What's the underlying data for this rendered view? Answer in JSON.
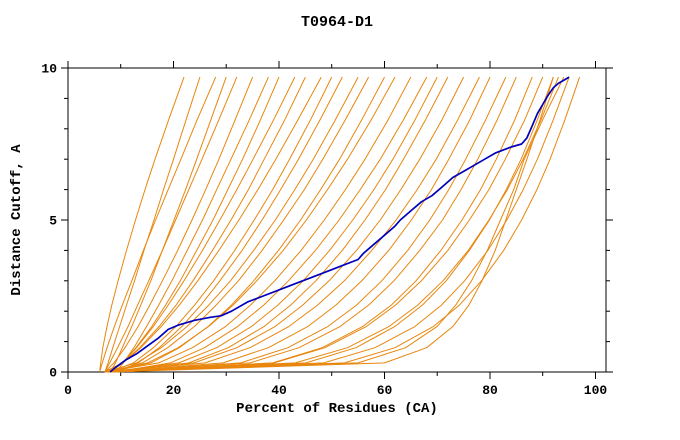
{
  "chart_data": {
    "type": "line",
    "title": "T0964-D1",
    "xlabel": "Percent of Residues (CA)",
    "ylabel": "Distance Cutoff, A",
    "xlim": [
      0,
      102
    ],
    "ylim": [
      0,
      10
    ],
    "x_ticks": [
      0,
      20,
      40,
      60,
      80,
      100
    ],
    "x_minor_ticks": [
      10,
      30,
      50,
      70,
      90
    ],
    "y_ticks": [
      0,
      5,
      10
    ],
    "y_minor_ticks": [
      1,
      2,
      3,
      4,
      6,
      7,
      8,
      9
    ],
    "grid": false,
    "legend": "none",
    "colors": {
      "background_series": "#e8860d",
      "highlight_series": "#0000bb",
      "frame": "#000000",
      "background": "#ffffff"
    },
    "y_grid": [
      0,
      0.3,
      0.8,
      1.5,
      2.2,
      3,
      4,
      5,
      6,
      7,
      8.3,
      9.7
    ],
    "background_series": [
      [
        7,
        7.6,
        8.5,
        9.8,
        11.1,
        12.6,
        14.4,
        16.3,
        18.1,
        20,
        22.4,
        25
      ],
      [
        8,
        9,
        10.3,
        12.1,
        13.8,
        15.7,
        17.9,
        20.1,
        22.3,
        24.4,
        27.1,
        30
      ],
      [
        7,
        8.7,
        10.8,
        13.3,
        15.5,
        17.9,
        20.8,
        23.5,
        26.1,
        28.6,
        31.7,
        35
      ],
      [
        8,
        10.4,
        12.9,
        15.9,
        18.5,
        21.3,
        24.4,
        27.5,
        30.3,
        33.1,
        36.5,
        40
      ],
      [
        7,
        10.3,
        13.6,
        17.3,
        20.5,
        23.7,
        27.4,
        30.9,
        34.2,
        37.2,
        41.1,
        45
      ],
      [
        8,
        12.4,
        16.2,
        20.5,
        24,
        27.6,
        31.6,
        35.3,
        38.8,
        42,
        46,
        50
      ],
      [
        7,
        13,
        17.7,
        22.6,
        26.7,
        30.8,
        35.2,
        39.3,
        43,
        46.5,
        50.7,
        55
      ],
      [
        8,
        15.7,
        21.1,
        26.6,
        31,
        35.2,
        39.9,
        44.1,
        47.9,
        51.5,
        55.7,
        60
      ],
      [
        7,
        17.2,
        23.6,
        29.9,
        34.6,
        39.2,
        44.2,
        48.6,
        52.6,
        56.3,
        60.7,
        65
      ],
      [
        8,
        21,
        28.2,
        34.8,
        39.8,
        44.6,
        49.6,
        54,
        58,
        61.6,
        65.8,
        70
      ],
      [
        7,
        23.9,
        32,
        39.3,
        44.5,
        49.5,
        54.7,
        59.2,
        63.1,
        66.7,
        70.9,
        75
      ],
      [
        8,
        29.4,
        38,
        45.5,
        50.8,
        55.7,
        60.8,
        65.1,
        68.9,
        72.2,
        76.2,
        80
      ],
      [
        7,
        34.5,
        43.8,
        51.6,
        57,
        61.8,
        66.7,
        71,
        74.5,
        77.7,
        81.4,
        85
      ],
      [
        8,
        39.1,
        48.7,
        56.6,
        62.1,
        67,
        72,
        76.1,
        79.8,
        82.9,
        86.6,
        90
      ],
      [
        7,
        43.1,
        53,
        60.9,
        66.3,
        71.1,
        75.9,
        79.8,
        83.3,
        86.3,
        89.7,
        93
      ],
      [
        8,
        48.5,
        58.2,
        65.8,
        70.8,
        75.2,
        79.6,
        83.2,
        86.3,
        89,
        92,
        95
      ],
      [
        6,
        6.5,
        7.4,
        8.8,
        10.3,
        12.1,
        14.3,
        16.6,
        19,
        21.4,
        24.5,
        28
      ],
      [
        7,
        7.9,
        9.4,
        11.4,
        13.2,
        15.3,
        17.9,
        20.4,
        22.9,
        25.4,
        28.6,
        32
      ],
      [
        9,
        10.5,
        12.5,
        14.9,
        17.2,
        19.7,
        22.6,
        25.5,
        28.2,
        30.9,
        34.4,
        38
      ],
      [
        8,
        10.3,
        13,
        16.2,
        19,
        22,
        25.5,
        28.8,
        32,
        35.1,
        39,
        43
      ],
      [
        7,
        10.4,
        13.8,
        17.7,
        21.1,
        24.6,
        28.6,
        32.4,
        36,
        39.4,
        43.6,
        48
      ],
      [
        9,
        13.3,
        17.3,
        21.6,
        25.2,
        28.8,
        33,
        36.8,
        40.3,
        43.7,
        47.8,
        52
      ],
      [
        8,
        14.1,
        18.9,
        24,
        28.1,
        32.3,
        36.8,
        40.9,
        44.8,
        48.3,
        52.6,
        57
      ],
      [
        7,
        15.1,
        20.9,
        26.7,
        31.3,
        35.8,
        40.8,
        45.2,
        49.2,
        53,
        57.5,
        62
      ],
      [
        9,
        19.4,
        25.9,
        32.2,
        37.1,
        41.8,
        46.9,
        51.4,
        55.4,
        59.2,
        63.6,
        68
      ],
      [
        8,
        22.9,
        30.4,
        37.2,
        42.2,
        47,
        52,
        56.3,
        60.2,
        63.6,
        67.8,
        72
      ],
      [
        7,
        26,
        34.5,
        41.9,
        47.3,
        52.4,
        57.6,
        62.2,
        66.2,
        69.8,
        73.9,
        78
      ],
      [
        8,
        32.7,
        41.7,
        49.3,
        54.7,
        59.5,
        64.4,
        68.6,
        72.2,
        75.4,
        79.2,
        83
      ],
      [
        7,
        38.8,
        48.2,
        55.9,
        61.3,
        66,
        70.7,
        74.7,
        78.2,
        81.2,
        84.7,
        88
      ],
      [
        9,
        45.1,
        54.6,
        62,
        67.2,
        71.7,
        76.1,
        79.9,
        83.1,
        85.9,
        89,
        92
      ],
      [
        8,
        52.4,
        62,
        69.3,
        74.2,
        78.4,
        82.6,
        86,
        88.9,
        91.4,
        94.2,
        97
      ],
      [
        6,
        6.2,
        6.6,
        7.4,
        8.3,
        9.5,
        11.1,
        12.8,
        14.6,
        16.5,
        19.1,
        22
      ],
      [
        8,
        60,
        68,
        73,
        76,
        78.5,
        81,
        83,
        85,
        87,
        89.5,
        92
      ],
      [
        7,
        55,
        64,
        70,
        73.5,
        76.5,
        79.5,
        82,
        84.5,
        86.5,
        90,
        94
      ]
    ],
    "highlight_series": [
      [
        8,
        0
      ],
      [
        9,
        0.15
      ],
      [
        11,
        0.4
      ],
      [
        13,
        0.6
      ],
      [
        15,
        0.85
      ],
      [
        17,
        1.1
      ],
      [
        19,
        1.4
      ],
      [
        21,
        1.55
      ],
      [
        24,
        1.7
      ],
      [
        27,
        1.8
      ],
      [
        29,
        1.85
      ],
      [
        31,
        2.0
      ],
      [
        34,
        2.3
      ],
      [
        37,
        2.5
      ],
      [
        40,
        2.7
      ],
      [
        43,
        2.9
      ],
      [
        46,
        3.1
      ],
      [
        49,
        3.3
      ],
      [
        52,
        3.5
      ],
      [
        55,
        3.7
      ],
      [
        56,
        3.9
      ],
      [
        58,
        4.2
      ],
      [
        60,
        4.5
      ],
      [
        62,
        4.8
      ],
      [
        63,
        5.0
      ],
      [
        65,
        5.3
      ],
      [
        67,
        5.6
      ],
      [
        69,
        5.8
      ],
      [
        71,
        6.1
      ],
      [
        73,
        6.4
      ],
      [
        75,
        6.6
      ],
      [
        77,
        6.8
      ],
      [
        79,
        7.0
      ],
      [
        81,
        7.2
      ],
      [
        84,
        7.4
      ],
      [
        86,
        7.5
      ],
      [
        87,
        7.7
      ],
      [
        88,
        8.1
      ],
      [
        89,
        8.5
      ],
      [
        90,
        8.8
      ],
      [
        91,
        9.1
      ],
      [
        92,
        9.35
      ],
      [
        93,
        9.5
      ],
      [
        94,
        9.6
      ],
      [
        95,
        9.7
      ]
    ]
  }
}
